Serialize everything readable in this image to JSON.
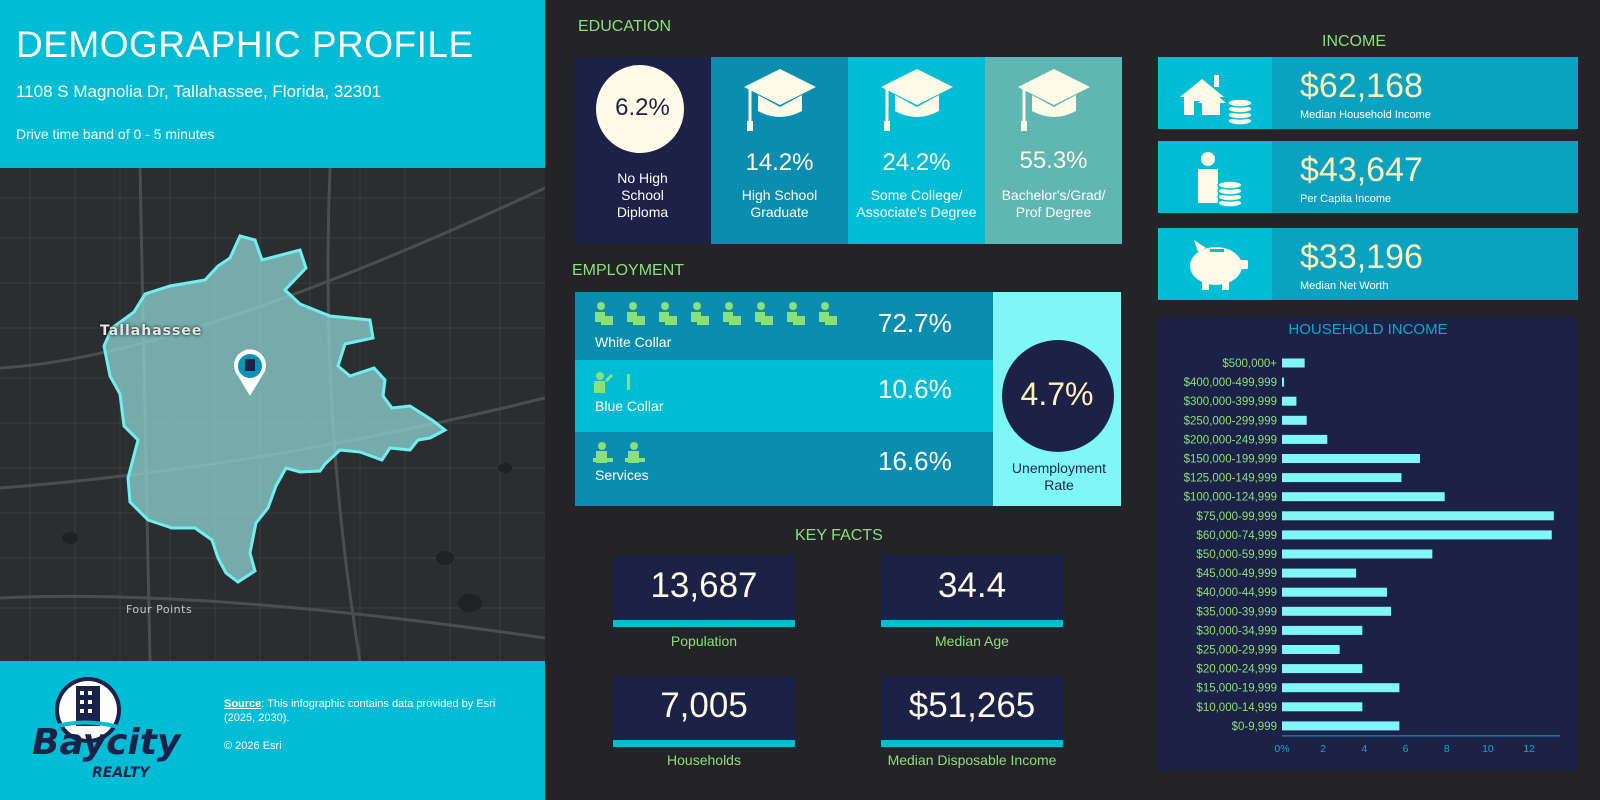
{
  "header": {
    "title": "DEMOGRAPHIC PROFILE",
    "address": "1108 S Magnolia Dr, Tallahassee, Florida, 32301",
    "drive_time": "Drive time band of 0 - 5 minutes"
  },
  "map": {
    "city_label": "Tallahassee",
    "area_label": "Four Points"
  },
  "footer": {
    "source_label": "Source",
    "source_text": ": This infographic contains data provided by Esri (2025, 2030).",
    "copyright": "© 2026 Esri",
    "logo_text_top": "Baycity",
    "logo_text_bottom": "REALTY"
  },
  "education": {
    "heading": "EDUCATION",
    "items": [
      {
        "value": "6.2%",
        "label": "No High School Diploma"
      },
      {
        "value": "14.2%",
        "label": "High School Graduate"
      },
      {
        "value": "24.2%",
        "label": "Some College/ Associate's Degree"
      },
      {
        "value": "55.3%",
        "label": "Bachelor's/Grad/ Prof Degree"
      }
    ]
  },
  "employment": {
    "heading": "EMPLOYMENT",
    "rows": [
      {
        "label": "White Collar",
        "value": "72.7%"
      },
      {
        "label": "Blue Collar",
        "value": "10.6%"
      },
      {
        "label": "Services",
        "value": "16.6%"
      }
    ],
    "unemployment_value": "4.7%",
    "unemployment_label": "Unemployment Rate"
  },
  "key_facts": {
    "heading": "KEY FACTS",
    "items": [
      {
        "value": "13,687",
        "label": "Population"
      },
      {
        "value": "34.4",
        "label": "Median Age"
      },
      {
        "value": "7,005",
        "label": "Households"
      },
      {
        "value": "$51,265",
        "label": "Median Disposable Income"
      }
    ]
  },
  "income": {
    "heading": "INCOME",
    "items": [
      {
        "value": "$62,168",
        "label": "Median Household Income"
      },
      {
        "value": "$43,647",
        "label": "Per Capita Income"
      },
      {
        "value": "$33,196",
        "label": "Median Net Worth"
      }
    ]
  },
  "colors": {
    "accent": "#00bcd4",
    "dark_bg": "#242428",
    "navy": "#1c2147",
    "green": "#8be07a",
    "bar": "#7ff7f8"
  },
  "chart_data": {
    "type": "bar",
    "title": "HOUSEHOLD INCOME",
    "orientation": "horizontal",
    "categories": [
      "$500,000+",
      "$400,000-499,999",
      "$300,000-399,999",
      "$250,000-299,999",
      "$200,000-249,999",
      "$150,000-199,999",
      "$125,000-149,999",
      "$100,000-124,999",
      "$75,000-99,999",
      "$60,000-74,999",
      "$50,000-59,999",
      "$45,000-49,999",
      "$40,000-44,999",
      "$35,000-39,999",
      "$30,000-34,999",
      "$25,000-29,999",
      "$20,000-24,999",
      "$15,000-19,999",
      "$10,000-14,999",
      "$0-9,999"
    ],
    "values": [
      1.1,
      0.1,
      0.7,
      1.2,
      2.2,
      6.7,
      5.8,
      7.9,
      13.2,
      13.1,
      7.3,
      3.6,
      5.1,
      5.3,
      3.9,
      2.8,
      3.9,
      5.7,
      3.9,
      5.7
    ],
    "xticks": [
      "0%",
      "2",
      "4",
      "6",
      "8",
      "10",
      "12"
    ],
    "xlim": [
      0,
      13.5
    ]
  }
}
